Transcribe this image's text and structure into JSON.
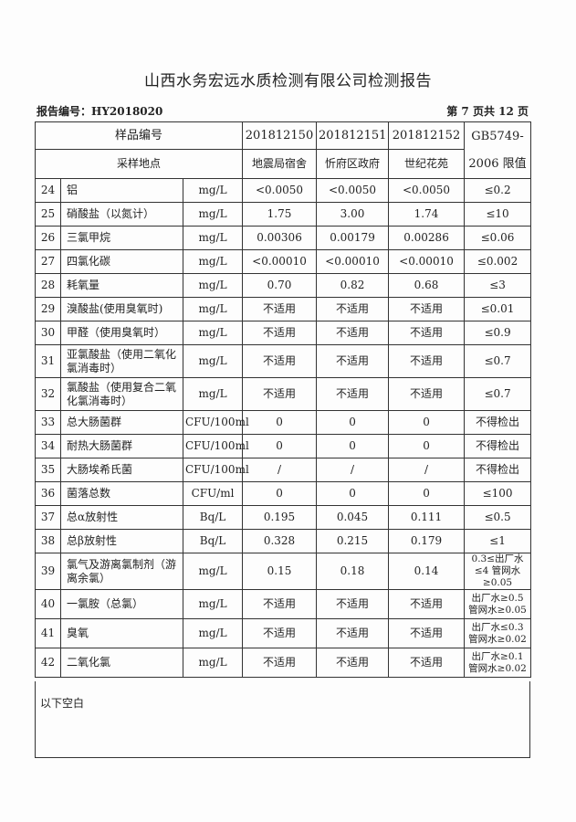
{
  "title": "山西水务宏远水质检测有限公司检测报告",
  "report_no": "报告编号：HY2018020",
  "page_info": "第 7 页共 12 页",
  "header": {
    "sample_no_label": "样品编号",
    "location_label": "采样地点",
    "standard": "GB5749-2006 限值",
    "samples": [
      {
        "no": "201812150",
        "loc": "地震局宿舍"
      },
      {
        "no": "201812151",
        "loc": "忻府区政府"
      },
      {
        "no": "201812152",
        "loc": "世纪花苑"
      }
    ]
  },
  "rows": [
    {
      "n": "24",
      "item": "铝",
      "unit": "mg/L",
      "v": [
        "<0.0050",
        "<0.0050",
        "<0.0050"
      ],
      "limit": "≤0.2"
    },
    {
      "n": "25",
      "item": "硝酸盐（以氮计）",
      "unit": "mg/L",
      "v": [
        "1.75",
        "3.00",
        "1.74"
      ],
      "limit": "≤10"
    },
    {
      "n": "26",
      "item": "三氯甲烷",
      "unit": "mg/L",
      "v": [
        "0.00306",
        "0.00179",
        "0.00286"
      ],
      "limit": "≤0.06"
    },
    {
      "n": "27",
      "item": "四氯化碳",
      "unit": "mg/L",
      "v": [
        "<0.00010",
        "<0.00010",
        "<0.00010"
      ],
      "limit": "≤0.002"
    },
    {
      "n": "28",
      "item": "耗氧量",
      "unit": "mg/L",
      "v": [
        "0.70",
        "0.82",
        "0.68"
      ],
      "limit": "≤3"
    },
    {
      "n": "29",
      "item": "溴酸盐(使用臭氧时)",
      "unit": "mg/L",
      "v": [
        "不适用",
        "不适用",
        "不适用"
      ],
      "limit": "≤0.01"
    },
    {
      "n": "30",
      "item": "甲醛（使用臭氧时）",
      "unit": "mg/L",
      "v": [
        "不适用",
        "不适用",
        "不适用"
      ],
      "limit": "≤0.9"
    },
    {
      "n": "31",
      "item": "亚氯酸盐（使用二氧化氯消毒时）",
      "unit": "mg/L",
      "v": [
        "不适用",
        "不适用",
        "不适用"
      ],
      "limit": "≤0.7"
    },
    {
      "n": "32",
      "item": "氯酸盐（使用复合二氧化氯消毒时）",
      "unit": "mg/L",
      "v": [
        "不适用",
        "不适用",
        "不适用"
      ],
      "limit": "≤0.7"
    },
    {
      "n": "33",
      "item": "总大肠菌群",
      "unit": "CFU/100ml",
      "v": [
        "0",
        "0",
        "0"
      ],
      "limit": "不得检出"
    },
    {
      "n": "34",
      "item": "耐热大肠菌群",
      "unit": "CFU/100ml",
      "v": [
        "0",
        "0",
        "0"
      ],
      "limit": "不得检出"
    },
    {
      "n": "35",
      "item": "大肠埃希氏菌",
      "unit": "CFU/100ml",
      "v": [
        "/",
        "/",
        "/"
      ],
      "limit": "不得检出"
    },
    {
      "n": "36",
      "item": "菌落总数",
      "unit": "CFU/ml",
      "v": [
        "0",
        "0",
        "0"
      ],
      "limit": "≤100"
    },
    {
      "n": "37",
      "item": "总α放射性",
      "unit": "Bq/L",
      "v": [
        "0.195",
        "0.045",
        "0.111"
      ],
      "limit": "≤0.5"
    },
    {
      "n": "38",
      "item": "总β放射性",
      "unit": "Bq/L",
      "v": [
        "0.328",
        "0.215",
        "0.179"
      ],
      "limit": "≤1"
    },
    {
      "n": "39",
      "item": "氯气及游离氯制剂（游离余氯）",
      "unit": "mg/L",
      "v": [
        "0.15",
        "0.18",
        "0.14"
      ],
      "limit": "0.3≤出厂水≤4 管网水≥0.05"
    },
    {
      "n": "40",
      "item": "一氯胺（总氯）",
      "unit": "mg/L",
      "v": [
        "不适用",
        "不适用",
        "不适用"
      ],
      "limit": "出厂水≥0.5 管网水≥0.05"
    },
    {
      "n": "41",
      "item": "臭氧",
      "unit": "mg/L",
      "v": [
        "不适用",
        "不适用",
        "不适用"
      ],
      "limit": "出厂水≤0.3 管网水≥0.02"
    },
    {
      "n": "42",
      "item": "二氧化氯",
      "unit": "mg/L",
      "v": [
        "不适用",
        "不适用",
        "不适用"
      ],
      "limit": "出厂水≥0.1 管网水≥0.02"
    }
  ],
  "footer": "以下空白"
}
